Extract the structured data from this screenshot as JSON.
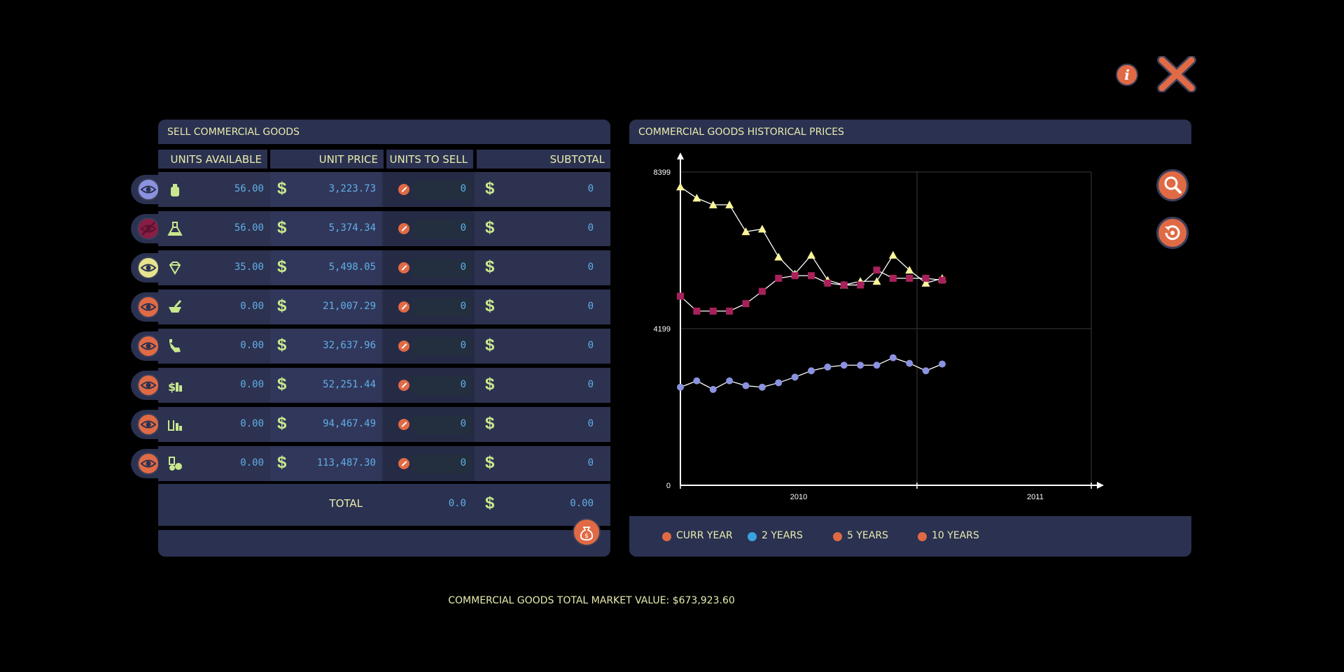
{
  "buttons": {
    "info": "i",
    "close": "close",
    "zoom": "zoom",
    "reset": "reset"
  },
  "sell_panel": {
    "title": "SELL COMMERCIAL GOODS",
    "columns": [
      "UNITS AVAILABLE",
      "UNIT PRICE",
      "UNITS TO SELL",
      "SUBTOTAL"
    ],
    "rows": [
      {
        "icon": "bottle-icon",
        "visible": true,
        "eye_color": "#8b92e0",
        "units": "56.00",
        "price": "3,223.73",
        "to_sell": "0",
        "subtotal": "0"
      },
      {
        "icon": "flask-icon",
        "visible": false,
        "eye_color": "#8a1d44",
        "units": "56.00",
        "price": "5,374.34",
        "to_sell": "0",
        "subtotal": "0"
      },
      {
        "icon": "gem-icon",
        "visible": true,
        "eye_color": "#e5e38d",
        "units": "35.00",
        "price": "5,498.05",
        "to_sell": "0",
        "subtotal": "0"
      },
      {
        "icon": "mortar-icon",
        "visible": true,
        "eye_color": "#e06a45",
        "units": "0.00",
        "price": "21,007.29",
        "to_sell": "0",
        "subtotal": "0"
      },
      {
        "icon": "hand-icon",
        "visible": true,
        "eye_color": "#e06a45",
        "units": "0.00",
        "price": "32,637.96",
        "to_sell": "0",
        "subtotal": "0"
      },
      {
        "icon": "money-bottles-icon",
        "visible": true,
        "eye_color": "#e06a45",
        "units": "0.00",
        "price": "52,251.44",
        "to_sell": "0",
        "subtotal": "0"
      },
      {
        "icon": "tools-bottles-icon",
        "visible": true,
        "eye_color": "#e06a45",
        "units": "0.00",
        "price": "94,467.49",
        "to_sell": "0",
        "subtotal": "0"
      },
      {
        "icon": "lab-bottles-icon",
        "visible": true,
        "eye_color": "#e06a45",
        "units": "0.00",
        "price": "113,487.30",
        "to_sell": "0",
        "subtotal": "0"
      }
    ],
    "total_label": "TOTAL",
    "total_units": "0.0",
    "total_value": "0.00",
    "currency": "$"
  },
  "chart_panel": {
    "title": "COMMERCIAL GOODS HISTORICAL PRICES",
    "legend": [
      {
        "label": "CURR YEAR",
        "color": "#e06a45"
      },
      {
        "label": "2 YEARS",
        "color": "#3aa2e0"
      },
      {
        "label": "5 YEARS",
        "color": "#e06a45"
      },
      {
        "label": "10 YEARS",
        "color": "#e06a45"
      }
    ]
  },
  "chart_data": {
    "type": "line",
    "y_ticks": [
      "0",
      "4199",
      "8399"
    ],
    "ylim": [
      0,
      8399
    ],
    "x_ticks": [
      "2010",
      "2011"
    ],
    "grid": true,
    "series": [
      {
        "color": "#fbf59a",
        "marker": "triangle",
        "values": [
          8000,
          7700,
          7520,
          7520,
          6800,
          6870,
          6120,
          5670,
          6170,
          5500,
          5370,
          5470,
          5470,
          6170,
          5770,
          5420,
          5550
        ]
      },
      {
        "color": "#a8215a",
        "marker": "square",
        "values": [
          5070,
          4670,
          4670,
          4670,
          4870,
          5200,
          5550,
          5620,
          5620,
          5420,
          5370,
          5370,
          5770,
          5550,
          5550,
          5550,
          5500
        ]
      },
      {
        "color": "#8b92e0",
        "marker": "circle",
        "values": [
          2630,
          2800,
          2570,
          2800,
          2670,
          2630,
          2750,
          2900,
          3070,
          3170,
          3220,
          3220,
          3220,
          3420,
          3270,
          3070,
          3250
        ]
      }
    ]
  },
  "footer": {
    "market_value": "COMMERCIAL GOODS TOTAL MARKET VALUE: $673,923.60"
  }
}
